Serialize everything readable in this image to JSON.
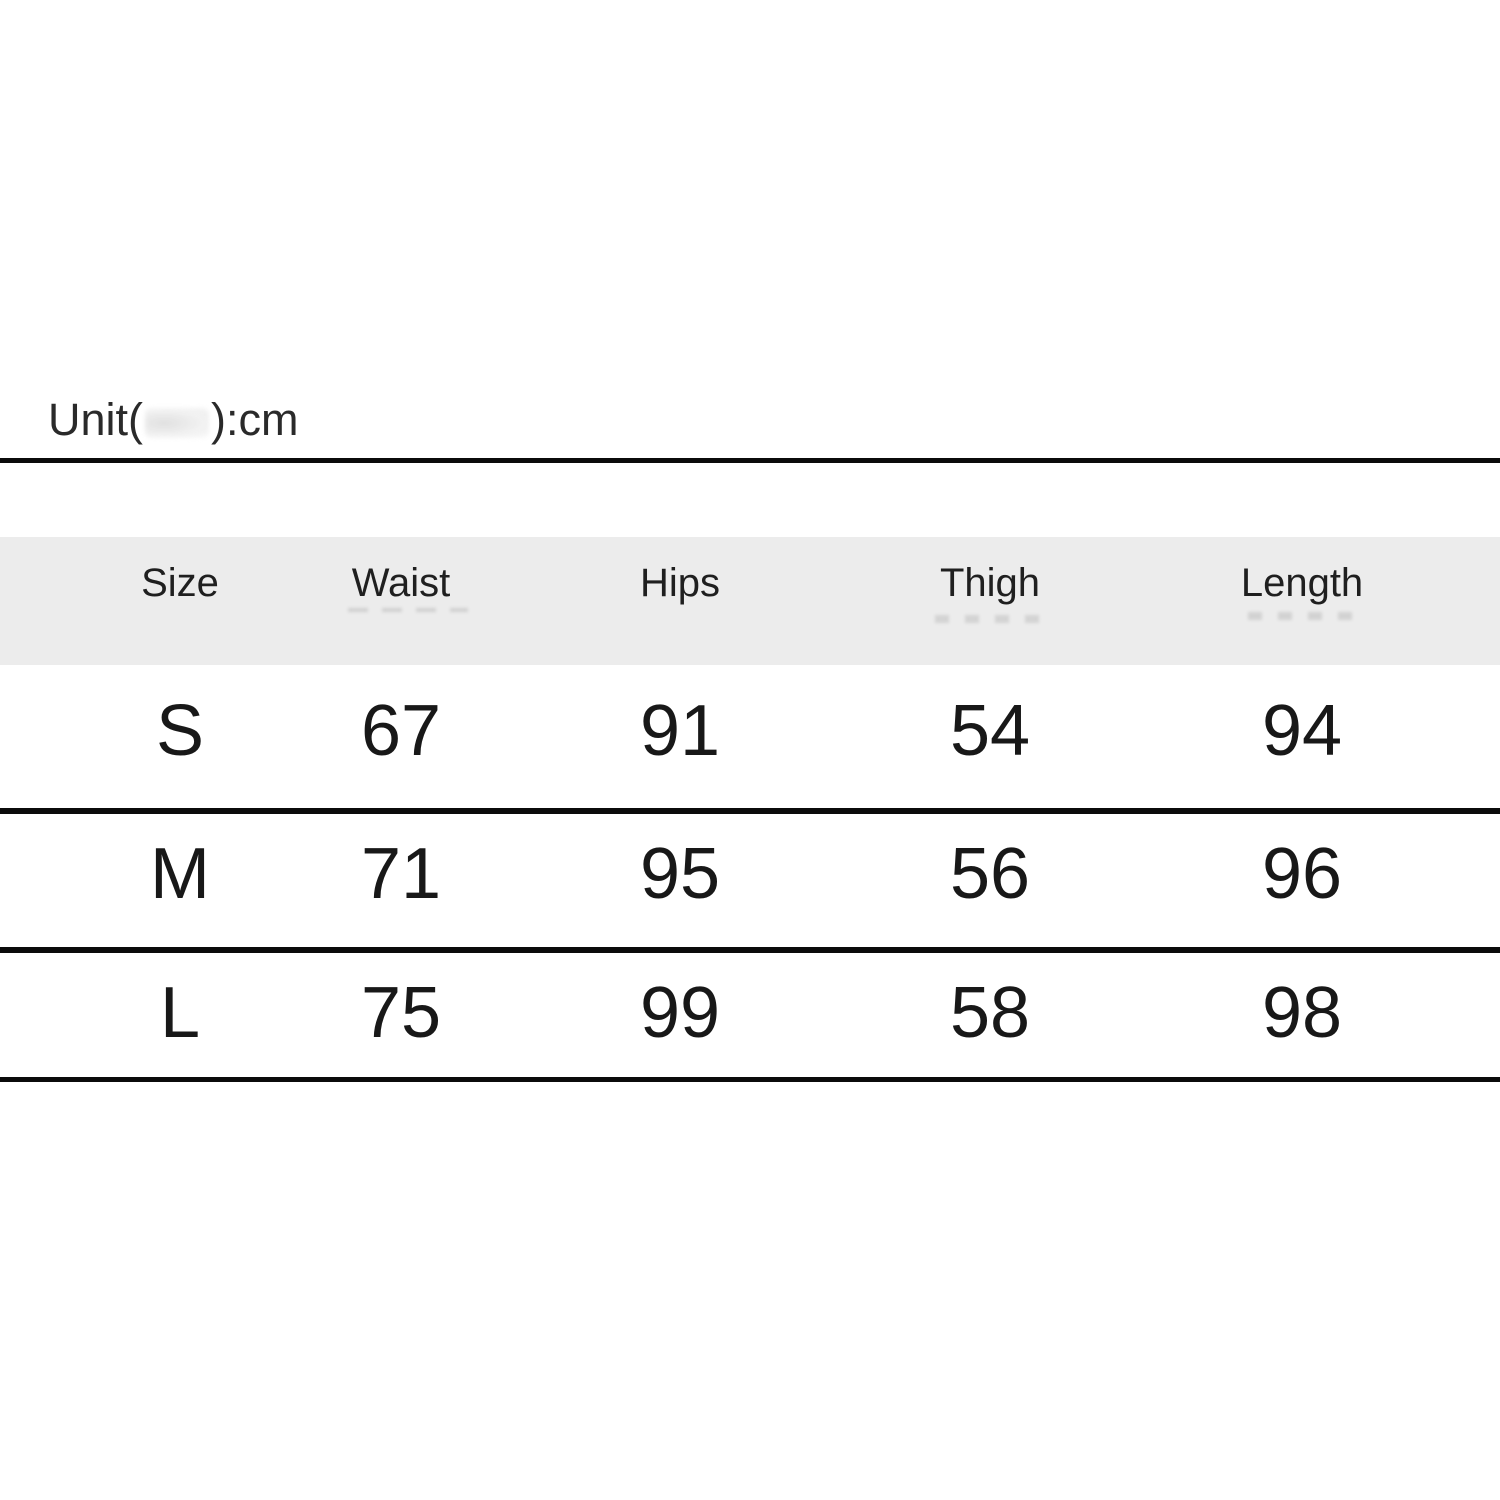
{
  "unit_note": {
    "prefix": "Unit(",
    "suffix": "):cm"
  },
  "chart_data": {
    "type": "table",
    "title": "Unit(...):cm size chart",
    "columns": [
      "Size",
      "Waist",
      "Hips",
      "Thigh",
      "Length"
    ],
    "rows": [
      [
        "S",
        "67",
        "91",
        "54",
        "94"
      ],
      [
        "M",
        "71",
        "95",
        "56",
        "96"
      ],
      [
        "L",
        "75",
        "99",
        "58",
        "98"
      ]
    ],
    "layout": {
      "header_background": "#ececec",
      "rule_color": "#0b0b0b",
      "text_color": "#181818",
      "page_background": "#ffffff",
      "smudge_color": "#bdbdbd"
    }
  }
}
